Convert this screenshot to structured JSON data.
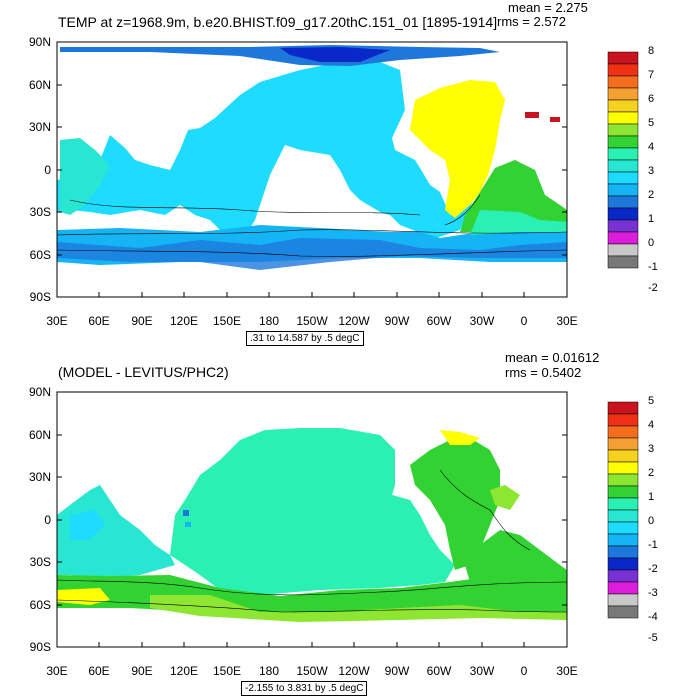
{
  "panels": [
    {
      "title": "TEMP at z=1968.9m, b.e20.BHIST.f09_g17.20thC.151_01 [1895-1914]",
      "mean": "mean = 2.275",
      "rms": "rms = 2.572",
      "range": ".31 to 14.587 by .5 degC",
      "lat_labels": [
        "90N",
        "60N",
        "30N",
        "0",
        "30S",
        "60S",
        "90S"
      ],
      "lon_labels": [
        "30E",
        "60E",
        "90E",
        "120E",
        "150E",
        "180",
        "150W",
        "120W",
        "90W",
        "60W",
        "30W",
        "0",
        "30E"
      ],
      "colorbar_labels": [
        "8",
        "7",
        "6",
        "5",
        "4",
        "3",
        "2",
        "1",
        "0",
        "-1",
        "-2"
      ],
      "colorbar_colors": [
        "#c8141e",
        "#f03214",
        "#f56e1e",
        "#f5a032",
        "#f5d21e",
        "#ffff00",
        "#8ce632",
        "#32d232",
        "#2af0b4",
        "#28e6d2",
        "#1edcff",
        "#14b4f5",
        "#1e78dc",
        "#0a28c8",
        "#7832d2",
        "#dc1edc",
        "#c8c8c8",
        "#787878"
      ]
    },
    {
      "title": "(MODEL - LEVITUS/PHC2)",
      "mean": "mean = 0.01612",
      "rms": "rms = 0.5402",
      "range": "-2.155 to 3.831 by .5 degC",
      "lat_labels": [
        "90N",
        "60N",
        "30N",
        "0",
        "30S",
        "60S",
        "90S"
      ],
      "lon_labels": [
        "30E",
        "60E",
        "90E",
        "120E",
        "150E",
        "180",
        "150W",
        "120W",
        "90W",
        "60W",
        "30W",
        "0",
        "30E"
      ],
      "colorbar_labels": [
        "5",
        "4",
        "3",
        "2",
        "1",
        "0",
        "-1",
        "-2",
        "-3",
        "-4",
        "-5"
      ],
      "colorbar_colors": [
        "#c8141e",
        "#f03214",
        "#f56e1e",
        "#f5a032",
        "#f5d21e",
        "#ffff00",
        "#8ce632",
        "#32d232",
        "#2af0b4",
        "#28e6d2",
        "#1edcff",
        "#14b4f5",
        "#1e78dc",
        "#0a28c8",
        "#7832d2",
        "#dc1edc",
        "#c8c8c8",
        "#787878"
      ]
    }
  ],
  "field_colors": {
    "pacific": "#1edcff",
    "indian": "#28e6d2",
    "southern_band": "#14b4f5",
    "southern_deep": "#1e78dc",
    "arctic": "#0a28c8",
    "atlantic_north": "#ffff00",
    "atlantic_south": "#32d232",
    "diff_pacific": "#2af0b4",
    "diff_indian": "#28e6d2",
    "diff_southern": "#32d232",
    "diff_southern_warm": "#ffff00",
    "diff_atlantic": "#32d232",
    "diff_atlantic_north": "#ffff00"
  }
}
